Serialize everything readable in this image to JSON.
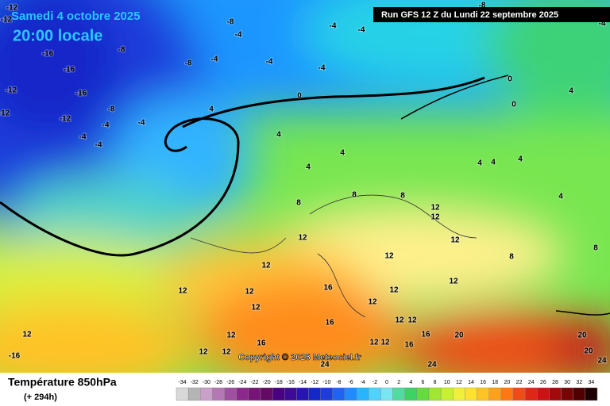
{
  "header": {
    "title": "Samedi 4 octobre 2025",
    "subtitle": "20:00 locale",
    "run": "Run GFS 12 Z du Lundi 22 septembre 2025"
  },
  "map": {
    "copyright": "Copyright © 2025 Meteociel.fr",
    "contour_labels": [
      "-12",
      "-12",
      "-12",
      "-12",
      "-12",
      "-16",
      "-16",
      "-16",
      "-8",
      "-8",
      "-8",
      "-8",
      "-8",
      "-4",
      "-4",
      "-4",
      "-4",
      "-4",
      "-4",
      "-4",
      "-4",
      "-4",
      "-4",
      "-4",
      "0",
      "0",
      "0",
      "4",
      "4",
      "4",
      "4",
      "4",
      "4",
      "4",
      "4",
      "4",
      "8",
      "8",
      "8",
      "8",
      "8",
      "12",
      "12",
      "12",
      "12",
      "12",
      "12",
      "12",
      "12",
      "12",
      "12",
      "12",
      "12",
      "12",
      "12",
      "12",
      "12",
      "12",
      "12",
      "12",
      "12",
      "16",
      "16",
      "16",
      "16",
      "16",
      "20",
      "20",
      "20",
      "24",
      "24",
      "24",
      "-16"
    ]
  },
  "footer": {
    "title": "Température 850hPa",
    "lead": "(+ 294h)"
  },
  "legend": {
    "scale": [
      -34,
      -32,
      -30,
      -28,
      -26,
      -24,
      -22,
      -20,
      -18,
      -16,
      -14,
      -12,
      -10,
      -8,
      -6,
      -4,
      -2,
      0,
      2,
      4,
      6,
      8,
      10,
      12,
      14,
      16,
      18,
      20,
      22,
      24,
      26,
      28,
      30,
      32,
      34
    ],
    "colors": [
      "#d8d8d8",
      "#b4b4b4",
      "#c8a0c8",
      "#b478b4",
      "#a050a0",
      "#8c288c",
      "#781478",
      "#640a64",
      "#4b0082",
      "#3c0a96",
      "#2814b4",
      "#1428c8",
      "#1e3cdc",
      "#1e64f0",
      "#1e8cff",
      "#28b4ff",
      "#50d2ff",
      "#78e6f0",
      "#50dca0",
      "#3cd264",
      "#64dc3c",
      "#a0e632",
      "#c8f032",
      "#f0f03c",
      "#ffe132",
      "#ffc328",
      "#ffa01e",
      "#ff7814",
      "#f04b14",
      "#dc2814",
      "#c81414",
      "#a00a0a",
      "#780505",
      "#500000",
      "#1e0000"
    ]
  }
}
